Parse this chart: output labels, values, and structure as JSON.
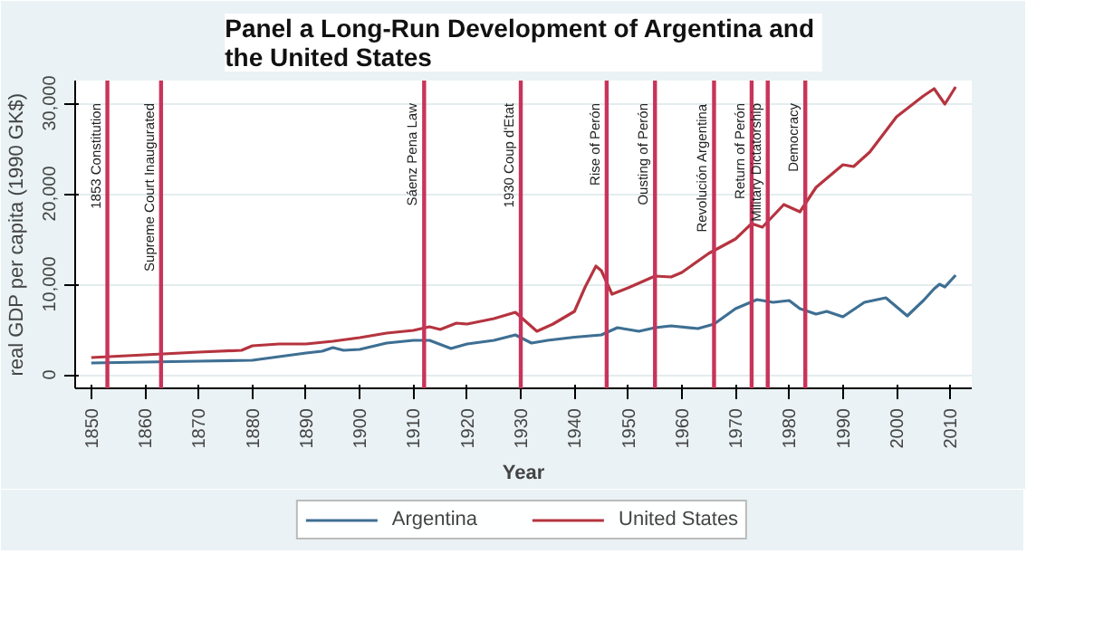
{
  "chart_data": {
    "type": "line",
    "title": "Panel a  Long-Run Development of Argentina and the United States",
    "xlabel": "Year",
    "ylabel": "real GDP per capita (1990 GK$)",
    "xlim": [
      1847,
      2014
    ],
    "ylim": [
      -1500,
      32500
    ],
    "xticks": [
      1850,
      1860,
      1870,
      1880,
      1890,
      1900,
      1910,
      1920,
      1930,
      1940,
      1950,
      1960,
      1970,
      1980,
      1990,
      2000,
      2010
    ],
    "yticks": [
      0,
      {
        "value": 10000,
        "label": "10,000"
      },
      {
        "value": 20000,
        "label": "20,000"
      },
      {
        "value": 30000,
        "label": "30,000"
      }
    ],
    "grid": "y",
    "legend": "bottom",
    "line_style": "solid",
    "marker": "none",
    "series": [
      {
        "name": "Argentina",
        "color": "#3e6f93",
        "x": [
          1850,
          1860,
          1870,
          1880,
          1885,
          1890,
          1893,
          1895,
          1897,
          1900,
          1905,
          1910,
          1913,
          1917,
          1920,
          1925,
          1929,
          1932,
          1935,
          1940,
          1945,
          1948,
          1952,
          1955,
          1958,
          1963,
          1966,
          1970,
          1974,
          1977,
          1980,
          1982,
          1985,
          1987,
          1990,
          1994,
          1998,
          2002,
          2005,
          2007,
          2008,
          2009,
          2011
        ],
        "values": [
          1300,
          1400,
          1500,
          1600,
          2000,
          2400,
          2600,
          3000,
          2700,
          2800,
          3500,
          3800,
          3800,
          2900,
          3400,
          3800,
          4400,
          3500,
          3800,
          4150,
          4400,
          5200,
          4800,
          5200,
          5400,
          5100,
          5600,
          7300,
          8300,
          8000,
          8200,
          7300,
          6700,
          7000,
          6400,
          8000,
          8500,
          6500,
          8200,
          9500,
          10000,
          9700,
          11000
        ]
      },
      {
        "name": "United States",
        "color": "#b5343f",
        "x": [
          1850,
          1860,
          1870,
          1878,
          1880,
          1885,
          1890,
          1895,
          1900,
          1905,
          1910,
          1913,
          1915,
          1918,
          1920,
          1925,
          1929,
          1933,
          1936,
          1940,
          1942,
          1944,
          1945,
          1947,
          1950,
          1955,
          1958,
          1960,
          1965,
          1970,
          1973,
          1975,
          1979,
          1982,
          1985,
          1990,
          1992,
          1995,
          2000,
          2005,
          2007,
          2009,
          2011
        ],
        "values": [
          1900,
          2200,
          2500,
          2700,
          3200,
          3400,
          3400,
          3700,
          4100,
          4600,
          4900,
          5300,
          5000,
          5700,
          5600,
          6200,
          6900,
          4800,
          5600,
          7000,
          9700,
          12000,
          11500,
          8900,
          9600,
          10900,
          10800,
          11300,
          13400,
          15000,
          16700,
          16300,
          18800,
          18000,
          20700,
          23200,
          23000,
          24600,
          28500,
          30800,
          31600,
          29900,
          31800
        ]
      }
    ],
    "ref_lines": [
      {
        "axis": "x",
        "value": 1853,
        "label": "1853 Constitution",
        "color": "#c8345a"
      },
      {
        "axis": "x",
        "value": 1863,
        "label": "Supreme Court Inaugurated",
        "color": "#c8345a"
      },
      {
        "axis": "x",
        "value": 1912,
        "label": "Sáenz Pena Law",
        "color": "#c8345a"
      },
      {
        "axis": "x",
        "value": 1930,
        "label": "1930 Coup d'Etat",
        "color": "#c8345a"
      },
      {
        "axis": "x",
        "value": 1946,
        "label": "Rise of Perón",
        "color": "#c8345a"
      },
      {
        "axis": "x",
        "value": 1955,
        "label": "Ousting of Perón",
        "color": "#c8345a"
      },
      {
        "axis": "x",
        "value": 1966,
        "label": "Revolución Argentina",
        "color": "#c8345a"
      },
      {
        "axis": "x",
        "value": 1973,
        "label": "Return of Perón",
        "color": "#c8345a"
      },
      {
        "axis": "x",
        "value": 1976,
        "label": "Military Dictatorship",
        "color": "#c8345a"
      },
      {
        "axis": "x",
        "value": 1983,
        "label": "Democracy",
        "color": "#c8345a"
      }
    ]
  }
}
